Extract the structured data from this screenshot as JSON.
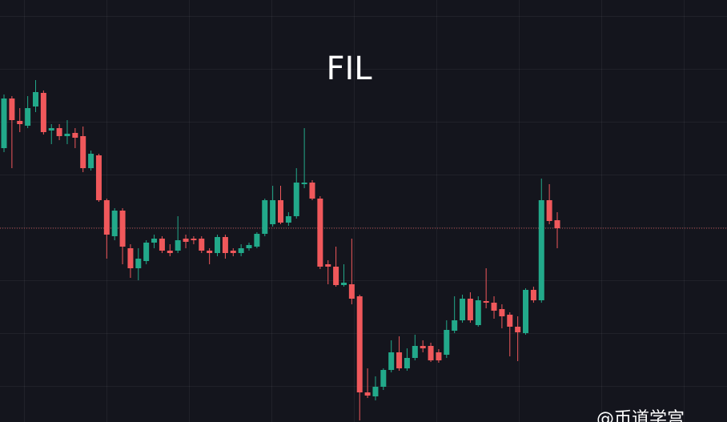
{
  "chart_data": {
    "type": "candlestick",
    "title": "FIL",
    "watermark": "@币道学宫",
    "ylim": [
      0,
      527
    ],
    "up_color": "#22a98a",
    "down_color": "#f0585b",
    "price_line": 242,
    "price_line_color": "#e0585b",
    "open": [
      342,
      404,
      376,
      370,
      394,
      411,
      364,
      367,
      357,
      361,
      357,
      317,
      333,
      277,
      232,
      264,
      217,
      192,
      201,
      224,
      229,
      214,
      214,
      229,
      229,
      229,
      214,
      211,
      231,
      214,
      211,
      217,
      219,
      235,
      247,
      277,
      249,
      257,
      297,
      299,
      279,
      197,
      194,
      171,
      172,
      157,
      37,
      32,
      44,
      65,
      87,
      67,
      80,
      95,
      95,
      87,
      84,
      114,
      127,
      154,
      121,
      151,
      149,
      141,
      134,
      119,
      111,
      165,
      152,
      277,
      252
    ],
    "high": [
      409,
      407,
      392,
      407,
      427,
      414,
      372,
      372,
      377,
      367,
      369,
      339,
      335,
      279,
      267,
      267,
      222,
      217,
      227,
      234,
      232,
      222,
      257,
      234,
      232,
      232,
      217,
      234,
      234,
      217,
      222,
      224,
      237,
      279,
      295,
      295,
      262,
      317,
      367,
      302,
      282,
      202,
      219,
      197,
      229,
      159,
      67,
      57,
      67,
      102,
      107,
      92,
      109,
      102,
      99,
      91,
      127,
      157,
      159,
      162,
      157,
      192,
      157,
      147,
      137,
      132,
      167,
      169,
      304,
      297,
      262
    ],
    "low": [
      337,
      317,
      362,
      367,
      387,
      359,
      347,
      352,
      347,
      342,
      312,
      314,
      275,
      204,
      227,
      197,
      180,
      177,
      197,
      217,
      211,
      207,
      211,
      217,
      222,
      211,
      197,
      207,
      204,
      207,
      207,
      214,
      217,
      232,
      244,
      247,
      245,
      254,
      292,
      277,
      191,
      172,
      169,
      169,
      147,
      2,
      30,
      27,
      40,
      62,
      64,
      64,
      77,
      87,
      75,
      74,
      80,
      111,
      124,
      124,
      119,
      142,
      129,
      117,
      82,
      76,
      109,
      149,
      149,
      247,
      217
    ],
    "close": [
      404,
      377,
      372,
      392,
      412,
      362,
      367,
      357,
      360,
      355,
      317,
      335,
      277,
      234,
      264,
      219,
      192,
      204,
      224,
      229,
      214,
      211,
      227,
      225,
      227,
      214,
      211,
      231,
      211,
      211,
      217,
      221,
      235,
      277,
      277,
      249,
      257,
      299,
      299,
      279,
      194,
      194,
      171,
      174,
      154,
      37,
      33,
      44,
      65,
      87,
      67,
      80,
      95,
      92,
      77,
      77,
      115,
      127,
      154,
      127,
      152,
      149,
      139,
      132,
      119,
      112,
      165,
      152,
      277,
      251,
      242
    ]
  }
}
